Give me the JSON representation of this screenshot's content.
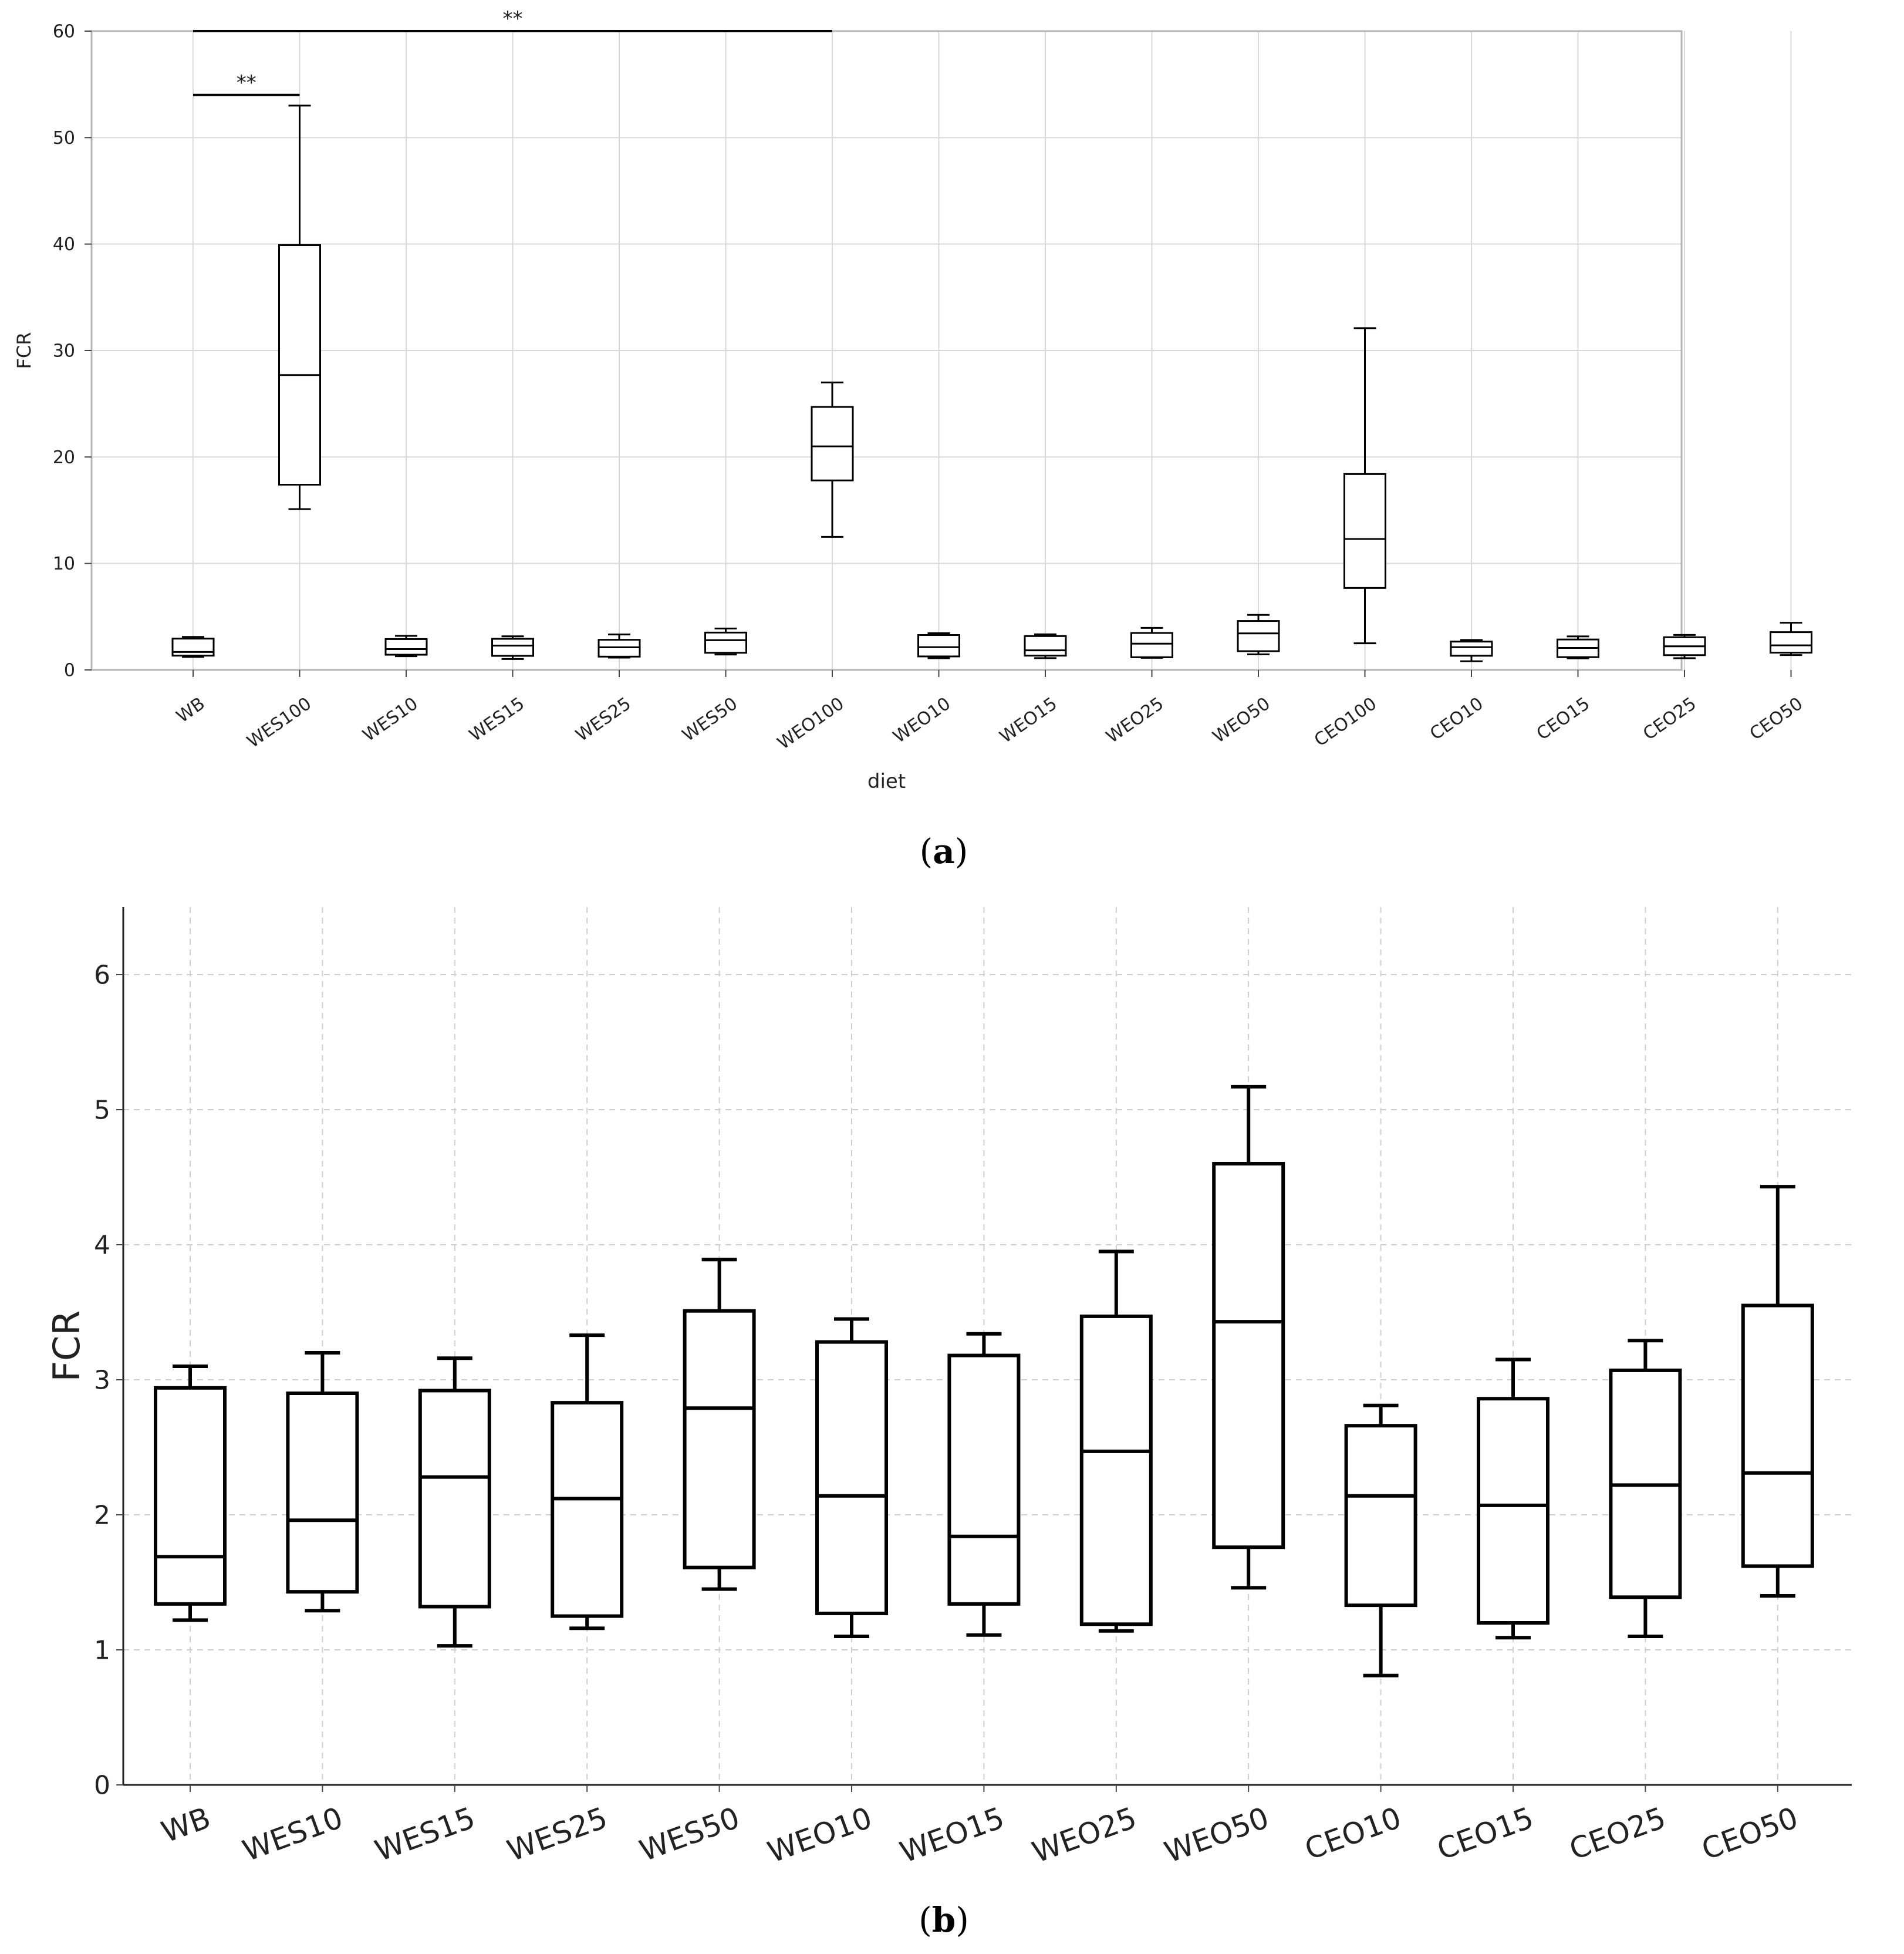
{
  "chart_data": [
    {
      "type": "boxplot",
      "panel_label": "a",
      "xlabel": "diet",
      "ylabel": "FCR",
      "ylim": [
        0,
        60
      ],
      "yticks": [
        0,
        10,
        20,
        30,
        40,
        50,
        60
      ],
      "grid": true,
      "categories": [
        "WB",
        "WES100",
        "WES10",
        "WES15",
        "WES25",
        "WES50",
        "WEO100",
        "WEO10",
        "WEO15",
        "WEO25",
        "WEO50",
        "CEO100",
        "CEO10",
        "CEO15",
        "CEO25",
        "CEO50"
      ],
      "boxes": [
        {
          "min": 1.22,
          "q1": 1.34,
          "median": 1.69,
          "q3": 2.94,
          "max": 3.1
        },
        {
          "min": 15.1,
          "q1": 17.4,
          "median": 27.7,
          "q3": 39.9,
          "max": 53.0
        },
        {
          "min": 1.29,
          "q1": 1.43,
          "median": 1.96,
          "q3": 2.9,
          "max": 3.2
        },
        {
          "min": 1.03,
          "q1": 1.32,
          "median": 2.28,
          "q3": 2.92,
          "max": 3.16
        },
        {
          "min": 1.16,
          "q1": 1.25,
          "median": 2.12,
          "q3": 2.83,
          "max": 3.33
        },
        {
          "min": 1.45,
          "q1": 1.61,
          "median": 2.79,
          "q3": 3.51,
          "max": 3.89
        },
        {
          "min": 12.5,
          "q1": 17.8,
          "median": 21.0,
          "q3": 24.7,
          "max": 27.0
        },
        {
          "min": 1.1,
          "q1": 1.27,
          "median": 2.14,
          "q3": 3.28,
          "max": 3.45
        },
        {
          "min": 1.11,
          "q1": 1.34,
          "median": 1.84,
          "q3": 3.18,
          "max": 3.34
        },
        {
          "min": 1.14,
          "q1": 1.19,
          "median": 2.47,
          "q3": 3.47,
          "max": 3.95
        },
        {
          "min": 1.46,
          "q1": 1.76,
          "median": 3.43,
          "q3": 4.6,
          "max": 5.17
        },
        {
          "min": 2.5,
          "q1": 7.7,
          "median": 12.3,
          "q3": 18.4,
          "max": 32.1
        },
        {
          "min": 0.81,
          "q1": 1.33,
          "median": 2.14,
          "q3": 2.66,
          "max": 2.81
        },
        {
          "min": 1.09,
          "q1": 1.2,
          "median": 2.07,
          "q3": 2.86,
          "max": 3.15
        },
        {
          "min": 1.1,
          "q1": 1.39,
          "median": 2.22,
          "q3": 3.07,
          "max": 3.29
        },
        {
          "min": 1.4,
          "q1": 1.62,
          "median": 2.31,
          "q3": 3.55,
          "max": 4.43
        }
      ],
      "annotations": [
        {
          "text": "**",
          "from": "WB",
          "to": "WES100",
          "y": 54
        },
        {
          "text": "**",
          "from": "WB",
          "to": "WEO100",
          "y": 60
        }
      ]
    },
    {
      "type": "boxplot",
      "panel_label": "b",
      "xlabel": "",
      "ylabel": "FCR",
      "ylim": [
        0,
        6.5
      ],
      "yticks": [
        0,
        1,
        2,
        3,
        4,
        5,
        6
      ],
      "grid": true,
      "categories": [
        "WB",
        "WES10",
        "WES15",
        "WES25",
        "WES50",
        "WEO10",
        "WEO15",
        "WEO25",
        "WEO50",
        "CEO10",
        "CEO15",
        "CEO25",
        "CEO50"
      ],
      "boxes": [
        {
          "min": 1.22,
          "q1": 1.34,
          "median": 1.69,
          "q3": 2.94,
          "max": 3.1
        },
        {
          "min": 1.29,
          "q1": 1.43,
          "median": 1.96,
          "q3": 2.9,
          "max": 3.2
        },
        {
          "min": 1.03,
          "q1": 1.32,
          "median": 2.28,
          "q3": 2.92,
          "max": 3.16
        },
        {
          "min": 1.16,
          "q1": 1.25,
          "median": 2.12,
          "q3": 2.83,
          "max": 3.33
        },
        {
          "min": 1.45,
          "q1": 1.61,
          "median": 2.79,
          "q3": 3.51,
          "max": 3.89
        },
        {
          "min": 1.1,
          "q1": 1.27,
          "median": 2.14,
          "q3": 3.28,
          "max": 3.45
        },
        {
          "min": 1.11,
          "q1": 1.34,
          "median": 1.84,
          "q3": 3.18,
          "max": 3.34
        },
        {
          "min": 1.14,
          "q1": 1.19,
          "median": 2.47,
          "q3": 3.47,
          "max": 3.95
        },
        {
          "min": 1.46,
          "q1": 1.76,
          "median": 3.43,
          "q3": 4.6,
          "max": 5.17
        },
        {
          "min": 0.81,
          "q1": 1.33,
          "median": 2.14,
          "q3": 2.66,
          "max": 2.81
        },
        {
          "min": 1.09,
          "q1": 1.2,
          "median": 2.07,
          "q3": 2.86,
          "max": 3.15
        },
        {
          "min": 1.1,
          "q1": 1.39,
          "median": 2.22,
          "q3": 3.07,
          "max": 3.29
        },
        {
          "min": 1.4,
          "q1": 1.62,
          "median": 2.31,
          "q3": 3.55,
          "max": 4.43
        }
      ]
    }
  ]
}
